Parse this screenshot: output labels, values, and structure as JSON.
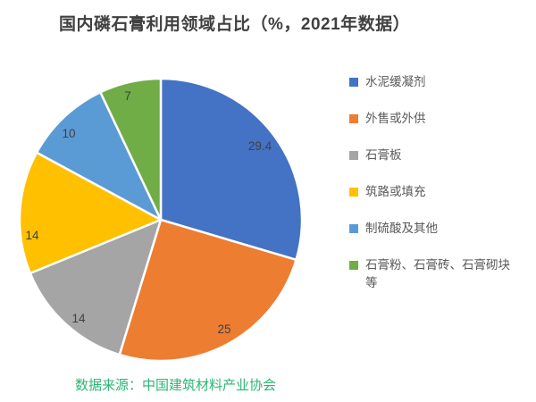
{
  "title": "国内磷石膏利用领域占比（%，2021年数据）",
  "source_note": "数据来源：中国建筑材料产业协会",
  "colors": {
    "title_text": "#404040",
    "legend_text": "#595959",
    "data_label_text": "#404040",
    "source_text": "#2BB673",
    "background": "#ffffff",
    "slice_separator": "#ffffff"
  },
  "chart_data": {
    "type": "pie",
    "title": "国内磷石膏利用领域占比（%，2021年数据）",
    "unit": "%",
    "categories": [
      "水泥缓凝剂",
      "外售或外供",
      "石膏板",
      "筑路或填充",
      "制硫酸及其他",
      "石膏粉、石膏砖、石膏砌块等"
    ],
    "values": [
      29.4,
      25,
      14,
      14,
      10,
      7
    ],
    "slice_colors": [
      "#4472C4",
      "#ED7D31",
      "#A5A5A5",
      "#FFC000",
      "#5B9BD5",
      "#70AD47"
    ],
    "start_angle_deg": 0,
    "direction": "clockwise",
    "legend_position": "right",
    "data_labels": "inside",
    "source_note": "数据来源：中国建筑材料产业协会"
  }
}
